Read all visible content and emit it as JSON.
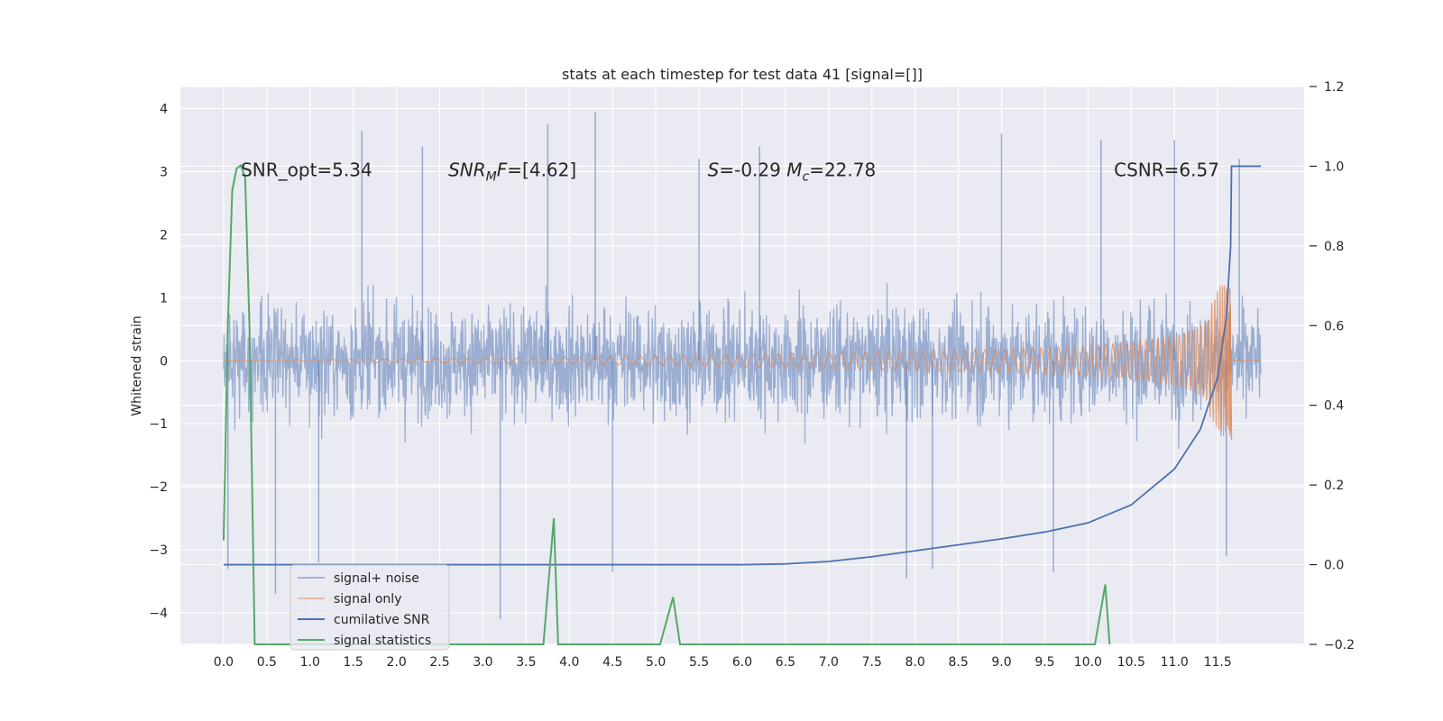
{
  "chart_data": {
    "type": "line",
    "title": "stats at each timestep for test data 41 [signal=[]]",
    "ylabel": "Whitened strain",
    "xlim": [
      -0.5,
      12.5
    ],
    "ylim": [
      -4.5,
      4.35
    ],
    "y2lim": [
      -0.2,
      1.2
    ],
    "grid": true,
    "legend_position": "lower-left",
    "x_ticks": [
      "0.0",
      "0.5",
      "1.0",
      "1.5",
      "2.0",
      "2.5",
      "3.0",
      "3.5",
      "4.0",
      "4.5",
      "5.0",
      "5.5",
      "6.0",
      "6.5",
      "7.0",
      "7.5",
      "8.0",
      "8.5",
      "9.0",
      "9.5",
      "10.0",
      "10.5",
      "11.0",
      "11.5"
    ],
    "y_ticks": [
      "−4",
      "−3",
      "−2",
      "−1",
      "0",
      "1",
      "2",
      "3",
      "4"
    ],
    "y2_ticks": [
      "−0.2",
      "0.0",
      "0.2",
      "0.4",
      "0.6",
      "0.8",
      "1.0",
      "1.2"
    ],
    "annotations": [
      {
        "text": "SNR_opt=5.34",
        "x": 0.2,
        "y": 3.0
      },
      {
        "text": "SNR_M F=[4.62]",
        "x": 2.6,
        "y": 3.0
      },
      {
        "text": "S=-0.29  M_c=22.78",
        "x": 5.6,
        "y": 3.0
      },
      {
        "text": "CSNR=6.57",
        "x": 10.3,
        "y": 3.0
      }
    ],
    "series": [
      {
        "name": "signal+ noise",
        "color": "#4c72b0",
        "axis": "left",
        "kind": "noise",
        "x_range": [
          0.0,
          12.0
        ],
        "envelope": [
          -1.9,
          1.9
        ],
        "spikes": [
          {
            "x": 0.05,
            "y": -3.3
          },
          {
            "x": 0.6,
            "y": -3.7
          },
          {
            "x": 1.1,
            "y": -3.2
          },
          {
            "x": 1.6,
            "y": 3.65
          },
          {
            "x": 2.3,
            "y": 3.4
          },
          {
            "x": 3.2,
            "y": -4.1
          },
          {
            "x": 3.75,
            "y": 3.75
          },
          {
            "x": 4.3,
            "y": 3.95
          },
          {
            "x": 4.5,
            "y": -3.35
          },
          {
            "x": 5.5,
            "y": 3.2
          },
          {
            "x": 6.2,
            "y": 3.4
          },
          {
            "x": 7.9,
            "y": -3.45
          },
          {
            "x": 8.2,
            "y": -3.3
          },
          {
            "x": 9.0,
            "y": 3.6
          },
          {
            "x": 9.6,
            "y": -3.35
          },
          {
            "x": 10.15,
            "y": 3.5
          },
          {
            "x": 11.0,
            "y": 3.5
          },
          {
            "x": 11.6,
            "y": -3.1
          },
          {
            "x": 11.75,
            "y": 3.2
          }
        ]
      },
      {
        "name": "signal only",
        "color": "#dd8452",
        "axis": "left",
        "kind": "chirp",
        "x_range": [
          0.0,
          12.0
        ],
        "merger_x": 11.66,
        "peak_amplitude": [
          1.15,
          -1.25
        ]
      },
      {
        "name": "cumilative SNR",
        "color": "#4c72b0",
        "axis": "right",
        "x": [
          0.0,
          6.0,
          6.5,
          7.0,
          7.5,
          8.0,
          8.5,
          9.0,
          9.5,
          10.0,
          10.5,
          11.0,
          11.3,
          11.5,
          11.6,
          11.65,
          11.66,
          12.0
        ],
        "y": [
          0.0,
          0.0,
          0.002,
          0.008,
          0.02,
          0.035,
          0.05,
          0.065,
          0.082,
          0.105,
          0.15,
          0.24,
          0.34,
          0.47,
          0.62,
          0.8,
          1.0,
          1.0
        ]
      },
      {
        "name": "signal statistics",
        "color": "#55a868",
        "axis": "left",
        "x": [
          0.0,
          0.05,
          0.1,
          0.15,
          0.2,
          0.25,
          0.3,
          0.36,
          0.5,
          3.7,
          3.82,
          3.87,
          3.92,
          5.05,
          5.2,
          5.28,
          10.08,
          10.2,
          10.25
        ],
        "y": [
          -2.85,
          0.6,
          2.7,
          3.05,
          3.1,
          2.9,
          0.5,
          -4.5,
          -4.5,
          -4.5,
          -2.5,
          -4.5,
          -4.5,
          -4.5,
          -3.75,
          -4.5,
          -4.5,
          -3.55,
          -4.5
        ]
      }
    ]
  }
}
